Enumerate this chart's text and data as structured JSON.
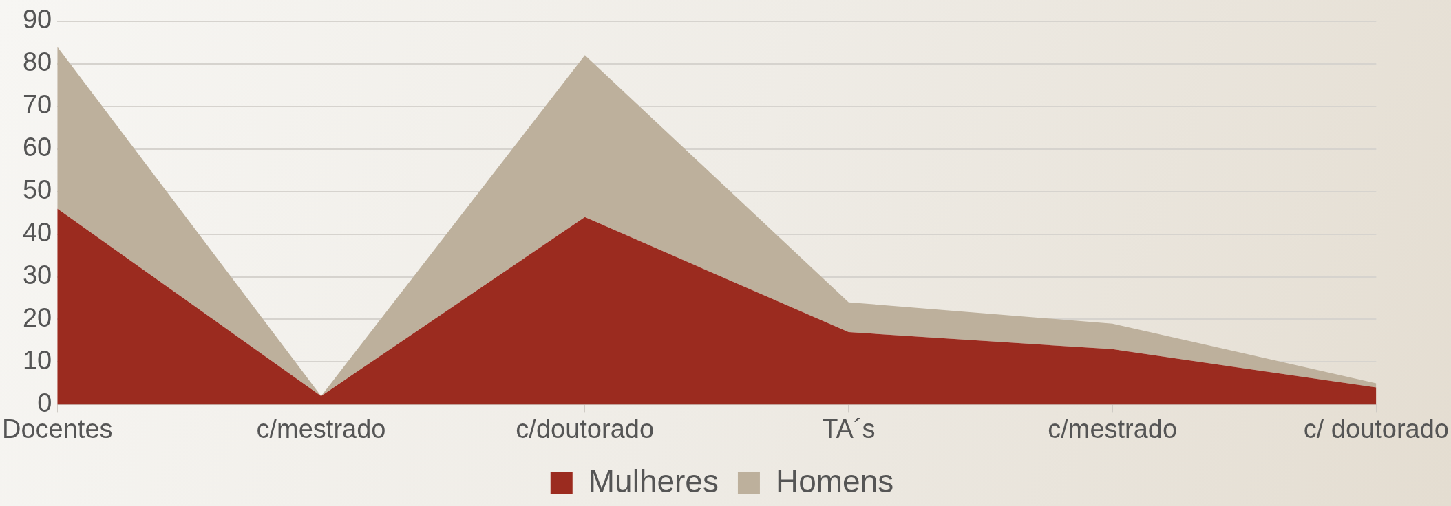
{
  "chart_data": {
    "type": "area",
    "stacked": true,
    "categories": [
      "Docentes",
      "c/mestrado",
      "c/doutorado",
      "TA´s",
      "c/mestrado",
      "c/ doutorado"
    ],
    "series": [
      {
        "name": "Mulheres",
        "color": "#9b2b1f",
        "values": [
          46,
          2,
          44,
          17,
          13,
          4
        ]
      },
      {
        "name": "Homens",
        "color": "#bdb09c",
        "values": [
          38,
          0,
          38,
          7,
          6,
          1
        ]
      }
    ],
    "ylim": [
      0,
      90
    ],
    "yticks": [
      0,
      10,
      20,
      30,
      40,
      50,
      60,
      70,
      80,
      90
    ],
    "grid": "y",
    "legend": "bottom"
  }
}
